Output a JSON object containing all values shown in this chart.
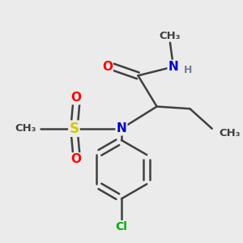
{
  "bg_color": "#ebebeb",
  "atom_colors": {
    "C": "#404040",
    "N": "#0000cc",
    "O": "#ff0000",
    "S": "#cccc00",
    "Cl": "#00aa00",
    "H": "#708090"
  },
  "bond_color": "#404040",
  "bond_width": 1.8,
  "figsize": [
    3.0,
    3.0
  ],
  "dpi": 100,
  "xlim": [
    -0.9,
    1.1
  ],
  "ylim": [
    -1.05,
    0.85
  ]
}
